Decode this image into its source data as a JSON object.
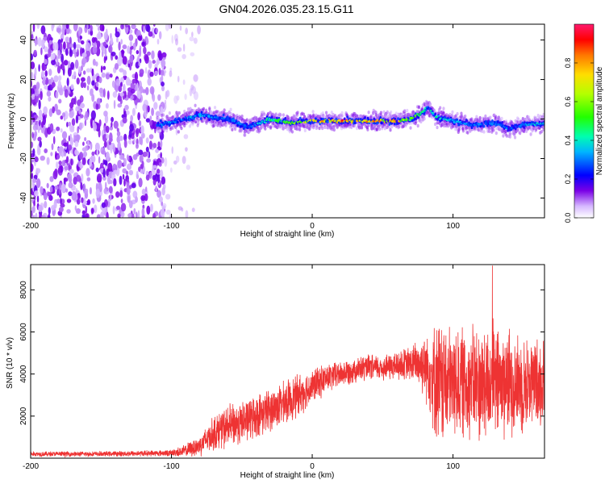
{
  "title": "GN04.2026.035.23.15.G11",
  "chart_data": [
    {
      "type": "heatmap",
      "xlabel": "Height of straight line (km)",
      "ylabel": "Frequency (Hz)",
      "xlim": [
        -200,
        165
      ],
      "ylim": [
        -50,
        48
      ],
      "xticks": [
        -200,
        -100,
        0,
        100
      ],
      "yticks": [
        -40,
        -20,
        0,
        20,
        40
      ],
      "colorbar": {
        "label": "Normalized spectral amplitude",
        "range": [
          0,
          1
        ],
        "ticks": [
          "0.0",
          "0.2",
          "0.4",
          "0.6",
          "0.8"
        ],
        "tick_values": [
          0,
          0.2,
          0.4,
          0.6,
          0.8
        ]
      },
      "noise_region_x": [
        -200,
        -80
      ],
      "signal_trace": {
        "x": [
          -110,
          -95,
          -80,
          -60,
          -45,
          -30,
          -15,
          0,
          20,
          40,
          60,
          70,
          78,
          82,
          88,
          100,
          115,
          130,
          140,
          150,
          165
        ],
        "freq": [
          -3,
          -1,
          2,
          0,
          -4,
          0,
          -2,
          -1,
          -1,
          -1,
          -1,
          0,
          3,
          6,
          1,
          -1,
          -3,
          -2,
          -5,
          -3,
          -2
        ],
        "amplitude": [
          0.3,
          0.35,
          0.35,
          0.3,
          0.3,
          0.45,
          0.6,
          0.75,
          0.85,
          0.8,
          0.75,
          0.6,
          0.5,
          0.4,
          0.45,
          0.35,
          0.3,
          0.35,
          0.3,
          0.35,
          0.4
        ]
      }
    },
    {
      "type": "line",
      "xlabel": "Height of straight line (km)",
      "ylabel": "SNR (10 * v/v)",
      "xlim": [
        -200,
        165
      ],
      "ylim": [
        0,
        9200
      ],
      "xticks": [
        -200,
        -100,
        0,
        100
      ],
      "yticks": [
        2000,
        4000,
        6000,
        8000
      ],
      "color": "#ee3333",
      "envelope": {
        "x": [
          -200,
          -150,
          -100,
          -90,
          -80,
          -70,
          -60,
          -50,
          -40,
          -30,
          -20,
          -10,
          0,
          10,
          20,
          30,
          40,
          50,
          60,
          70,
          80,
          90,
          100,
          110,
          120,
          130,
          140,
          150,
          165
        ],
        "mean": [
          200,
          200,
          250,
          350,
          600,
          1200,
          1500,
          1700,
          2000,
          2300,
          2600,
          3000,
          3400,
          3800,
          4000,
          4200,
          4300,
          4300,
          4400,
          4500,
          4500,
          3500,
          3600,
          3600,
          3500,
          3600,
          3600,
          3500,
          3700
        ],
        "spread": [
          120,
          120,
          150,
          300,
          500,
          800,
          1000,
          1000,
          1000,
          1000,
          1000,
          1000,
          800,
          700,
          600,
          600,
          600,
          600,
          700,
          800,
          1500,
          3000,
          2500,
          2600,
          2800,
          2800,
          2500,
          2200,
          2000
        ]
      },
      "peak": {
        "x": 128,
        "y": 9150
      }
    }
  ]
}
